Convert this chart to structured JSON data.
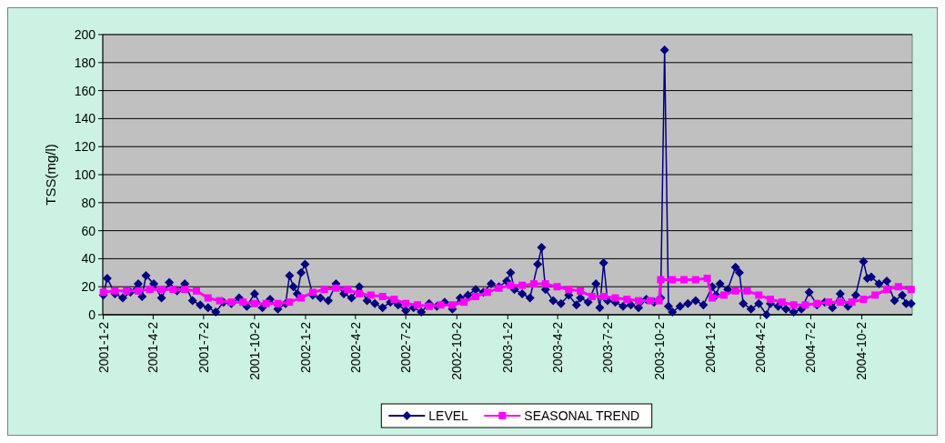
{
  "chart_data": {
    "type": "line",
    "ylabel": "TSS(mg/l)",
    "ylim": [
      0,
      200
    ],
    "yticks": [
      0,
      20,
      40,
      60,
      80,
      100,
      120,
      140,
      160,
      180,
      200
    ],
    "xlim": [
      "2001-01-01",
      "2005-01-01"
    ],
    "xticks": [
      {
        "value": "2001-01-02",
        "label": "2001-1-2"
      },
      {
        "value": "2001-04-02",
        "label": "2001-4-2"
      },
      {
        "value": "2001-07-02",
        "label": "2001-7-2"
      },
      {
        "value": "2001-10-02",
        "label": "2001-10-2"
      },
      {
        "value": "2002-01-02",
        "label": "2002-1-2"
      },
      {
        "value": "2002-04-02",
        "label": "2002-4-2"
      },
      {
        "value": "2002-07-02",
        "label": "2002-7-2"
      },
      {
        "value": "2002-10-02",
        "label": "2002-10-2"
      },
      {
        "value": "2003-01-02",
        "label": "2003-1-2"
      },
      {
        "value": "2003-04-02",
        "label": "2003-4-2"
      },
      {
        "value": "2003-07-02",
        "label": "2003-7-2"
      },
      {
        "value": "2003-10-02",
        "label": "2003-10-2"
      },
      {
        "value": "2004-01-02",
        "label": "2004-1-2"
      },
      {
        "value": "2004-04-02",
        "label": "2004-4-2"
      },
      {
        "value": "2004-07-02",
        "label": "2004-7-2"
      },
      {
        "value": "2004-10-02",
        "label": "2004-10-2"
      }
    ],
    "grid": "y",
    "legend": "bottom",
    "line_style": "solid",
    "series": [
      {
        "name": "LEVEL",
        "color": "#000080",
        "marker": "diamond",
        "x": [
          "2001-01-02",
          "2001-01-09",
          "2001-01-23",
          "2001-02-06",
          "2001-02-20",
          "2001-03-06",
          "2001-03-13",
          "2001-03-20",
          "2001-04-03",
          "2001-04-17",
          "2001-05-01",
          "2001-05-15",
          "2001-05-29",
          "2001-06-12",
          "2001-06-26",
          "2001-07-10",
          "2001-07-24",
          "2001-08-07",
          "2001-08-21",
          "2001-09-04",
          "2001-09-18",
          "2001-10-02",
          "2001-10-16",
          "2001-10-30",
          "2001-11-13",
          "2001-11-27",
          "2001-12-04",
          "2001-12-11",
          "2001-12-18",
          "2001-12-25",
          "2002-01-01",
          "2002-01-15",
          "2002-01-29",
          "2002-02-12",
          "2002-02-26",
          "2002-03-12",
          "2002-03-26",
          "2002-04-09",
          "2002-04-23",
          "2002-05-07",
          "2002-05-21",
          "2002-06-04",
          "2002-06-18",
          "2002-07-02",
          "2002-07-16",
          "2002-07-30",
          "2002-08-13",
          "2002-08-27",
          "2002-09-10",
          "2002-09-24",
          "2002-10-08",
          "2002-10-22",
          "2002-11-05",
          "2002-11-19",
          "2002-12-03",
          "2002-12-17",
          "2002-12-31",
          "2003-01-07",
          "2003-01-14",
          "2003-01-28",
          "2003-02-11",
          "2003-02-25",
          "2003-03-04",
          "2003-03-11",
          "2003-03-25",
          "2003-04-08",
          "2003-04-22",
          "2003-05-06",
          "2003-05-13",
          "2003-05-27",
          "2003-06-10",
          "2003-06-17",
          "2003-06-24",
          "2003-07-01",
          "2003-07-15",
          "2003-07-29",
          "2003-08-12",
          "2003-08-26",
          "2003-09-09",
          "2003-09-23",
          "2003-10-05",
          "2003-10-12",
          "2003-10-19",
          "2003-10-26",
          "2003-11-09",
          "2003-11-23",
          "2003-12-07",
          "2003-12-21",
          "2004-01-06",
          "2004-01-13",
          "2004-01-20",
          "2004-02-03",
          "2004-02-17",
          "2004-02-24",
          "2004-03-02",
          "2004-03-16",
          "2004-03-30",
          "2004-04-13",
          "2004-04-20",
          "2004-05-04",
          "2004-05-18",
          "2004-06-01",
          "2004-06-15",
          "2004-06-29",
          "2004-07-13",
          "2004-07-27",
          "2004-08-10",
          "2004-08-24",
          "2004-09-07",
          "2004-09-21",
          "2004-10-05",
          "2004-10-12",
          "2004-10-19",
          "2004-11-02",
          "2004-11-16",
          "2004-11-30",
          "2004-12-14",
          "2004-12-21",
          "2004-12-30"
        ],
        "values": [
          14,
          26,
          15,
          12,
          16,
          22,
          13,
          28,
          22,
          12,
          23,
          17,
          22,
          10,
          7,
          5,
          2,
          9,
          8,
          12,
          6,
          15,
          5,
          11,
          4,
          8,
          28,
          20,
          15,
          30,
          36,
          14,
          12,
          10,
          22,
          15,
          12,
          20,
          10,
          8,
          5,
          9,
          7,
          3,
          5,
          2,
          8,
          6,
          9,
          4,
          12,
          14,
          18,
          16,
          22,
          20,
          24,
          30,
          18,
          15,
          12,
          36,
          48,
          18,
          10,
          8,
          14,
          7,
          12,
          9,
          22,
          5,
          37,
          10,
          9,
          6,
          7,
          5,
          11,
          9,
          12,
          189,
          6,
          2,
          6,
          8,
          10,
          7,
          20,
          14,
          22,
          18,
          34,
          30,
          8,
          4,
          8,
          0,
          8,
          6,
          4,
          2,
          4,
          16,
          7,
          9,
          5,
          15,
          6,
          14,
          38,
          26,
          27,
          22,
          24,
          10,
          14,
          8,
          8
        ]
      },
      {
        "name": "SEASONAL TREND",
        "color": "#ff00ff",
        "marker": "square",
        "x": [
          "2001-01-02",
          "2001-01-23",
          "2001-02-13",
          "2001-03-06",
          "2001-03-27",
          "2001-04-17",
          "2001-05-08",
          "2001-05-29",
          "2001-06-19",
          "2001-07-10",
          "2001-07-31",
          "2001-08-21",
          "2001-09-11",
          "2001-10-02",
          "2001-10-23",
          "2001-11-13",
          "2001-12-04",
          "2001-12-25",
          "2002-01-15",
          "2002-02-05",
          "2002-02-26",
          "2002-03-19",
          "2002-04-09",
          "2002-04-30",
          "2002-05-21",
          "2002-06-11",
          "2002-07-02",
          "2002-07-23",
          "2002-08-13",
          "2002-09-03",
          "2002-09-24",
          "2002-10-15",
          "2002-11-05",
          "2002-11-26",
          "2002-12-17",
          "2003-01-07",
          "2003-01-28",
          "2003-02-18",
          "2003-03-11",
          "2003-04-01",
          "2003-04-22",
          "2003-05-13",
          "2003-06-03",
          "2003-06-24",
          "2003-07-15",
          "2003-08-05",
          "2003-08-26",
          "2003-09-16",
          "2003-10-02",
          "2003-10-05",
          "2003-10-26",
          "2003-11-16",
          "2003-12-07",
          "2003-12-28",
          "2004-01-06",
          "2004-01-27",
          "2004-02-17",
          "2004-03-09",
          "2004-03-30",
          "2004-04-20",
          "2004-05-11",
          "2004-06-01",
          "2004-06-22",
          "2004-07-13",
          "2004-08-03",
          "2004-08-24",
          "2004-09-14",
          "2004-10-05",
          "2004-10-26",
          "2004-11-16",
          "2004-12-07",
          "2004-12-30"
        ],
        "values": [
          16,
          17,
          17,
          17,
          18,
          18,
          18,
          18,
          17,
          12,
          10,
          9,
          9,
          8,
          8,
          8,
          9,
          12,
          16,
          18,
          19,
          18,
          15,
          14,
          13,
          11,
          8,
          7,
          6,
          7,
          7,
          9,
          13,
          16,
          19,
          21,
          21,
          22,
          22,
          20,
          18,
          17,
          13,
          13,
          12,
          11,
          10,
          10,
          10,
          25,
          25,
          25,
          25,
          26,
          12,
          14,
          17,
          17,
          14,
          11,
          9,
          7,
          7,
          8,
          9,
          9,
          9,
          11,
          14,
          18,
          20,
          18
        ]
      }
    ]
  }
}
